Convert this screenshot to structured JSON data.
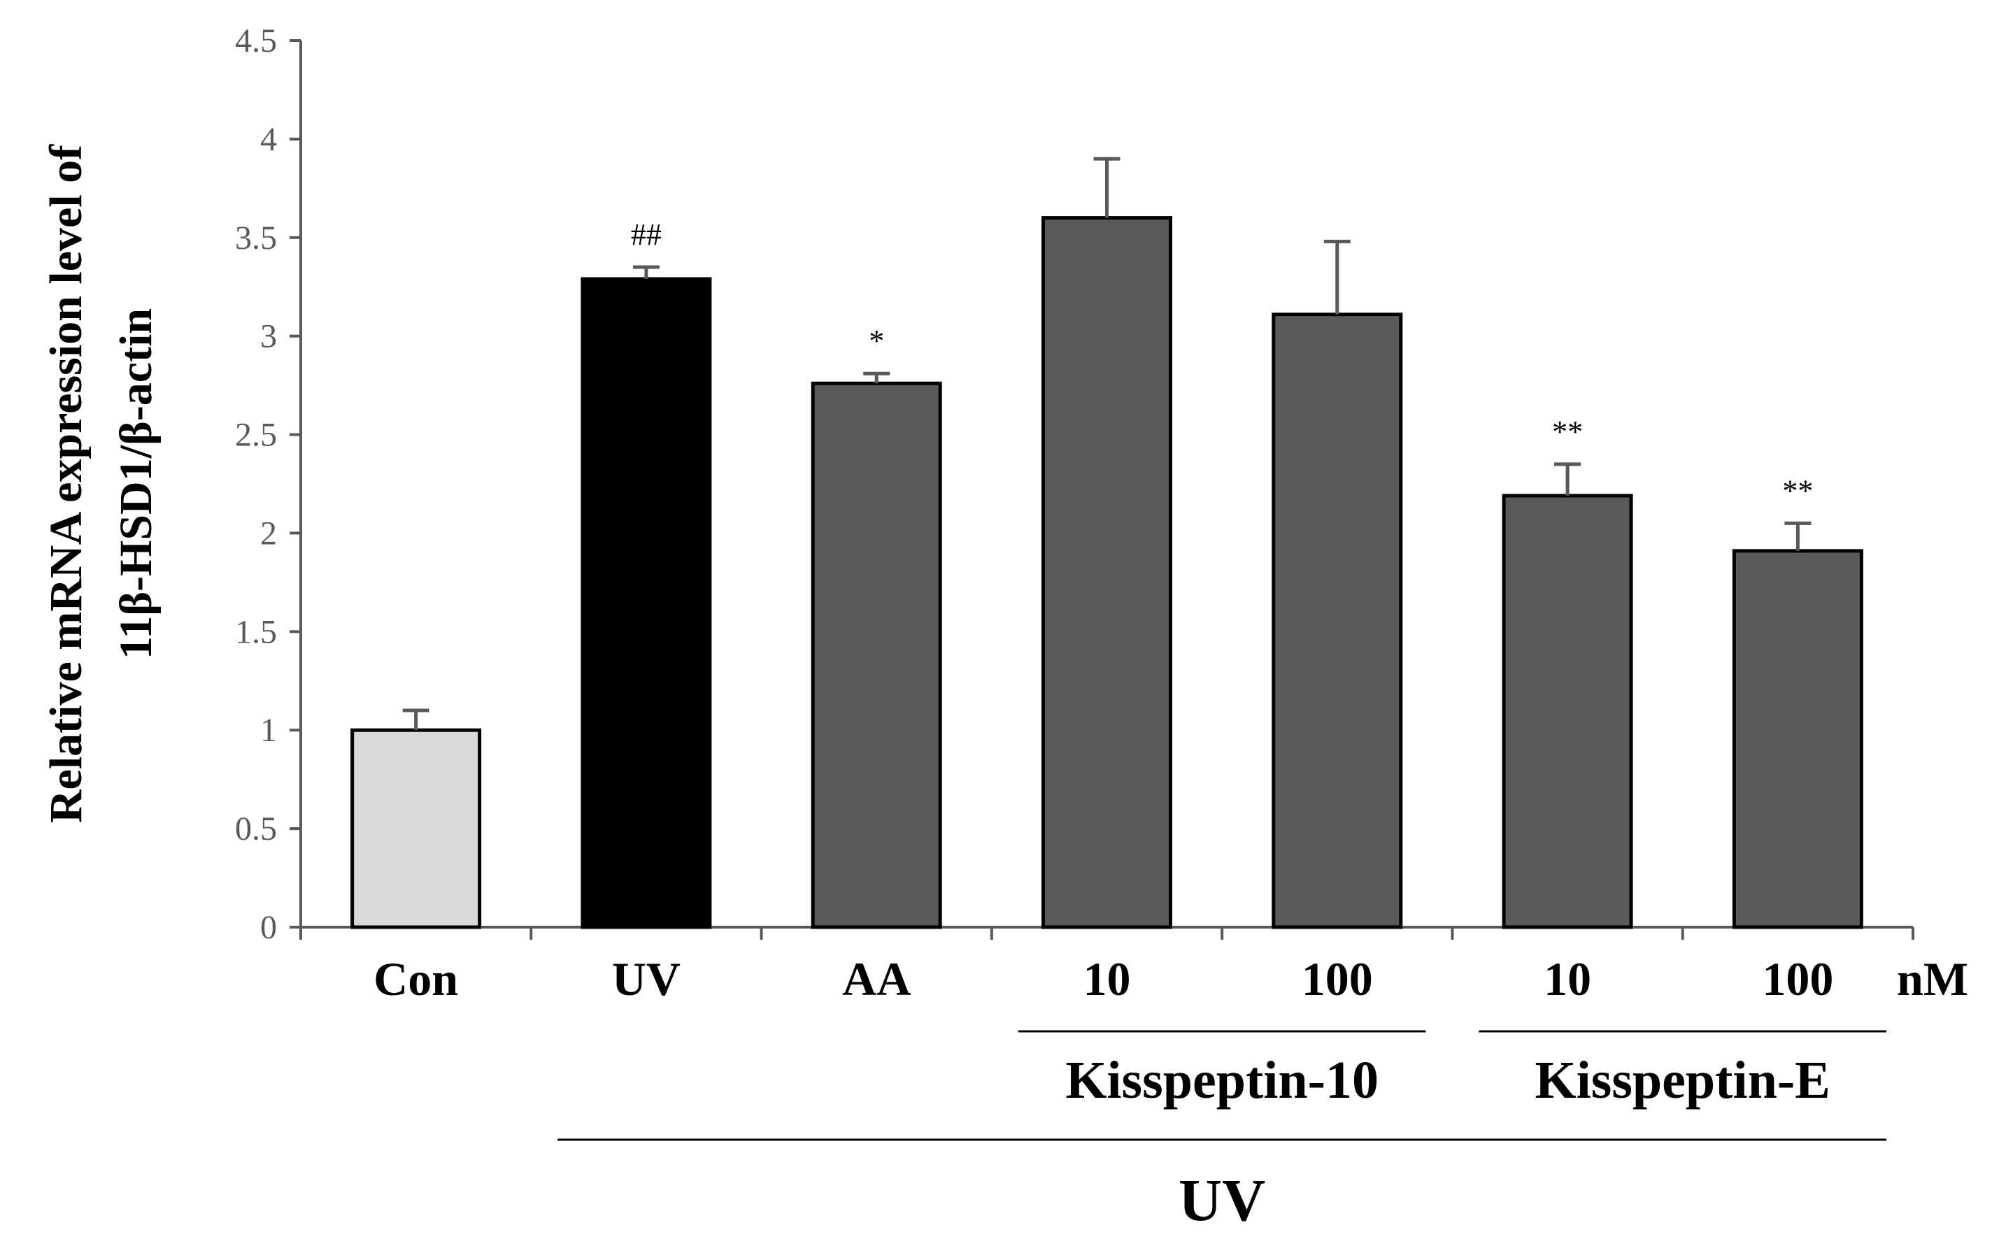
{
  "chart_data": {
    "type": "bar",
    "title": "",
    "ylabel_lines": [
      "Relative mRNA expression level of",
      "11β-HSD1/β-actin"
    ],
    "ylim": [
      0,
      4.5
    ],
    "ytick_step": 0.5,
    "yticks": [
      "0",
      "0.5",
      "1",
      "1.5",
      "2",
      "2.5",
      "3",
      "3.5",
      "4",
      "4.5"
    ],
    "categories": [
      "Con",
      "UV",
      "AA",
      "10",
      "100",
      "10",
      "100"
    ],
    "values": [
      1.0,
      3.29,
      2.76,
      3.6,
      3.11,
      2.19,
      1.91
    ],
    "errors": [
      0.1,
      0.06,
      0.05,
      0.3,
      0.37,
      0.16,
      0.14
    ],
    "significance": [
      "",
      "##",
      "*",
      "",
      "",
      "**",
      "**"
    ],
    "colors": [
      "#d9d9d9",
      "#000000",
      "#595959",
      "#595959",
      "#595959",
      "#595959",
      "#595959"
    ],
    "unit_label": "nM",
    "groups": [
      {
        "label": "Kisspeptin-10",
        "from": 3,
        "to": 4
      },
      {
        "label": "Kisspeptin-E",
        "from": 5,
        "to": 6
      }
    ],
    "treatment_label": "UV",
    "treatment_from": 1,
    "treatment_to": 6
  }
}
